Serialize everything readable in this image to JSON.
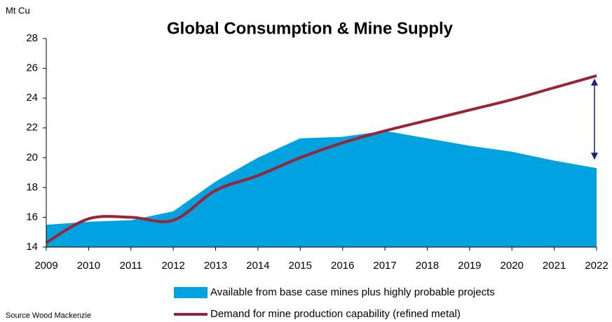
{
  "chart_data": {
    "type": "line",
    "title": "Global Consumption & Mine Supply",
    "y_label": "Mt Cu",
    "source": "Source Wood Mackenzie",
    "x": [
      2009,
      2010,
      2011,
      2012,
      2013,
      2014,
      2015,
      2016,
      2017,
      2018,
      2019,
      2020,
      2021,
      2022
    ],
    "xlim": [
      2009,
      2022
    ],
    "xticks": [
      2009,
      2010,
      2011,
      2012,
      2013,
      2014,
      2015,
      2016,
      2017,
      2018,
      2019,
      2020,
      2021,
      2022
    ],
    "ylim": [
      14,
      28
    ],
    "yticks": [
      14,
      16,
      18,
      20,
      22,
      24,
      26,
      28
    ],
    "grid": false,
    "legend": "bottom",
    "series": [
      {
        "name": "Available from base case mines plus highly probable projects",
        "type": "area",
        "color": "#00a3e0",
        "values": [
          15.5,
          15.7,
          15.8,
          16.4,
          18.4,
          20.0,
          21.3,
          21.4,
          21.8,
          21.3,
          20.8,
          20.4,
          19.8,
          19.3
        ]
      },
      {
        "name": "Demand for mine production capability (refined metal)",
        "type": "line",
        "color": "#9b2335",
        "values": [
          14.3,
          15.9,
          16.0,
          15.8,
          17.8,
          18.8,
          20.0,
          21.0,
          21.8,
          22.5,
          23.2,
          23.9,
          24.7,
          25.5
        ]
      }
    ]
  }
}
